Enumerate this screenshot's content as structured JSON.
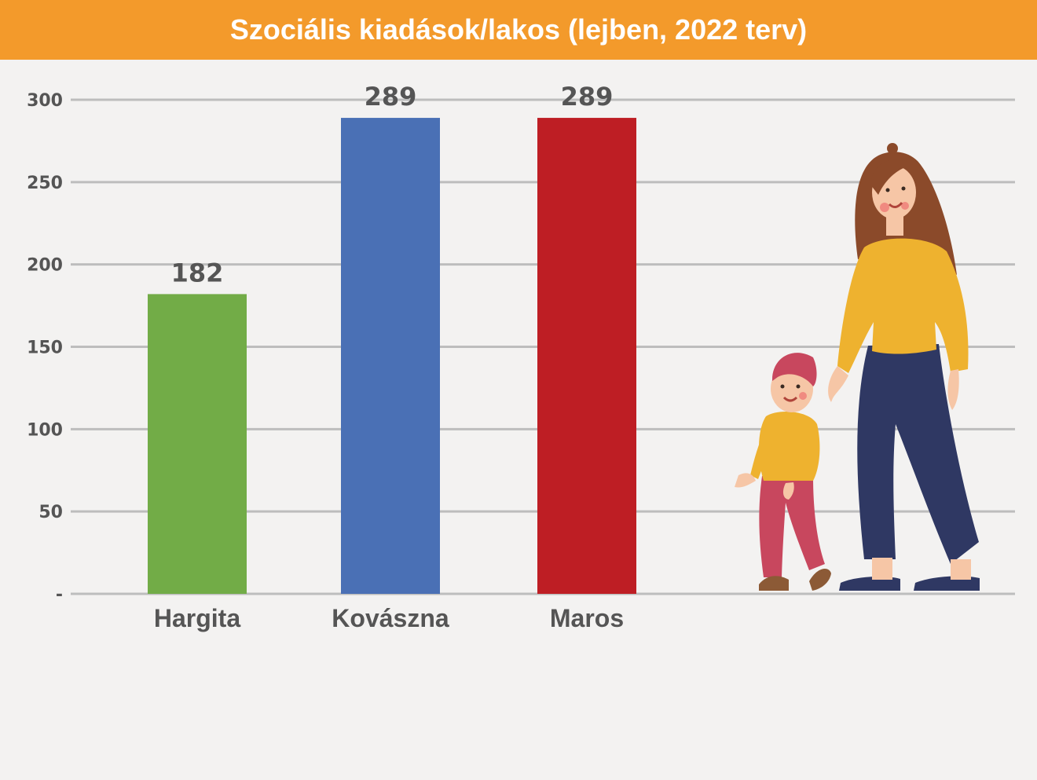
{
  "chart_data": {
    "type": "bar",
    "title": "Szociális kiadások/lakos (lejben, 2022 terv)",
    "categories": [
      "Hargita",
      "Kovászna",
      "Maros"
    ],
    "values": [
      182,
      289,
      289
    ],
    "value_labels": [
      "182",
      "289",
      "289"
    ],
    "colors": [
      "#72ac47",
      "#4a70b5",
      "#be1e24"
    ],
    "ylim": [
      0,
      300
    ],
    "yticks": [
      {
        "value": 0,
        "label": "-"
      },
      {
        "value": 50,
        "label": "50"
      },
      {
        "value": 100,
        "label": "100"
      },
      {
        "value": 150,
        "label": "150"
      },
      {
        "value": 200,
        "label": "200"
      },
      {
        "value": 250,
        "label": "250"
      },
      {
        "value": 300,
        "label": "300"
      }
    ],
    "grid": true,
    "xlabel": "",
    "ylabel": ""
  },
  "colors": {
    "header_bg": "#f39a2b",
    "gridline": "#bdbdbd",
    "text": "#555555"
  },
  "illustration": {
    "icon": "mother-and-child-walking-illustration"
  }
}
